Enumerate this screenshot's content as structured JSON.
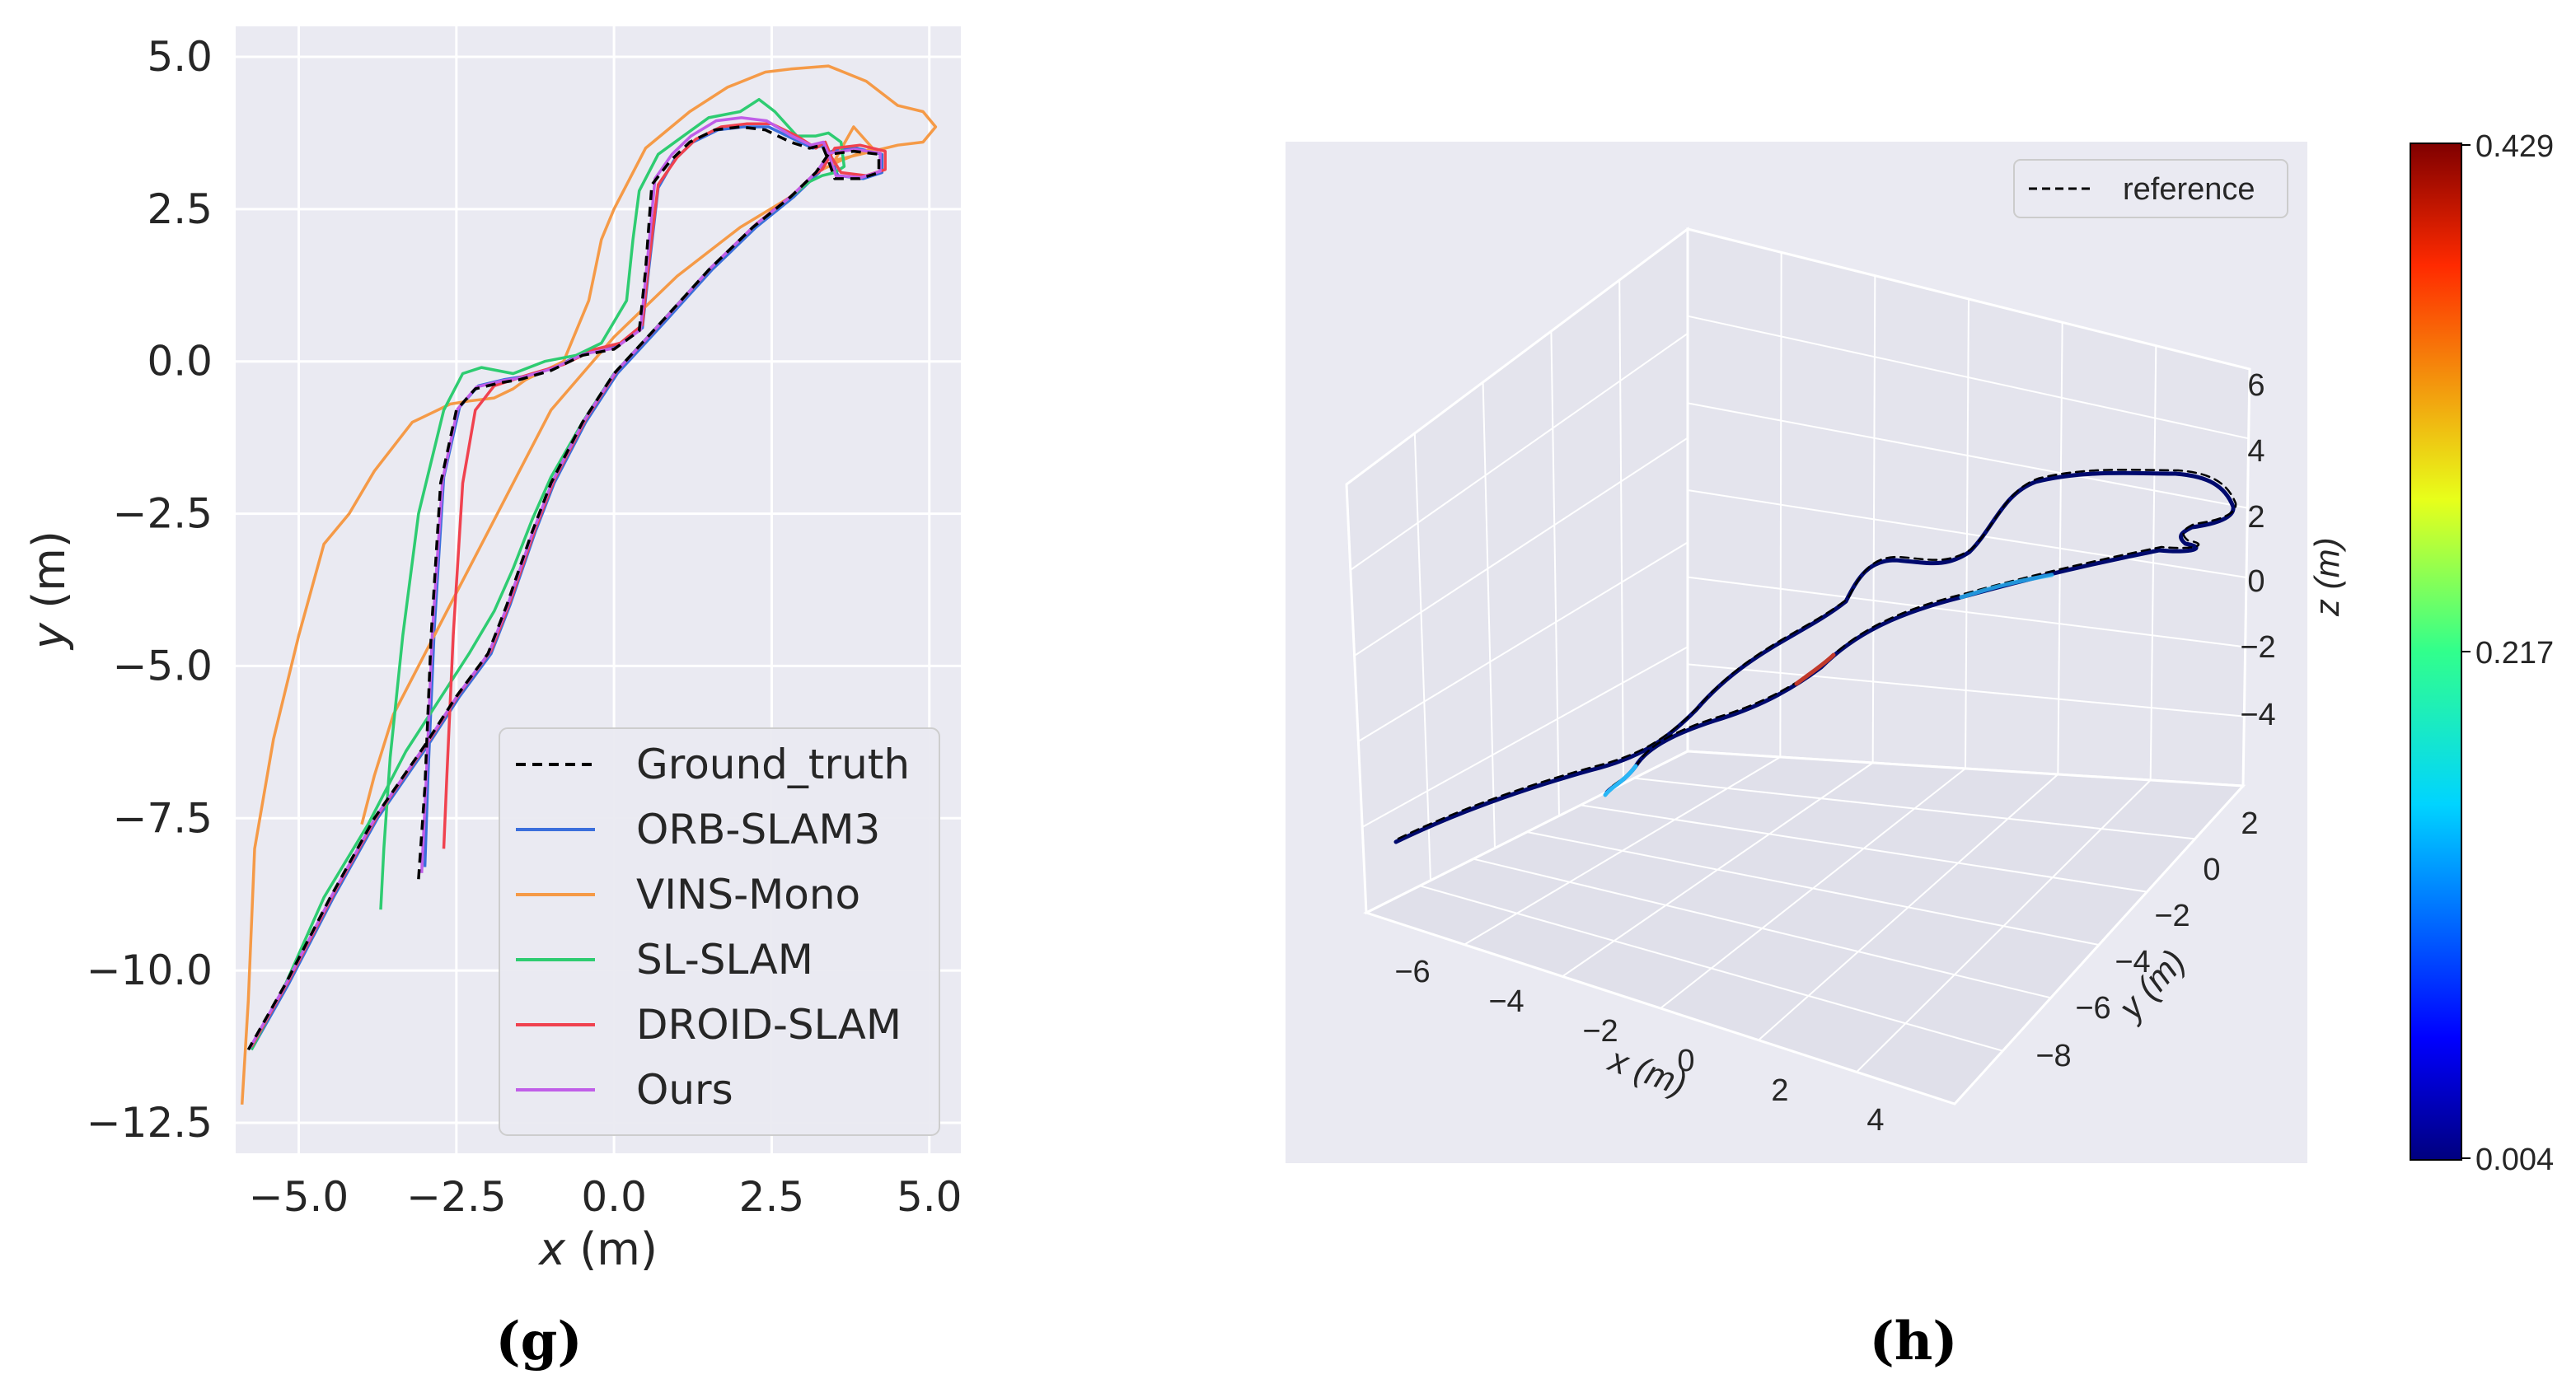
{
  "chart_data": [
    {
      "type": "line",
      "caption": "(g)",
      "xlabel": "x (m)",
      "ylabel": "y (m)",
      "xlim": [
        -6.0,
        5.5
      ],
      "ylim": [
        -13.0,
        5.5
      ],
      "xticks": [
        -5.0,
        -2.5,
        0.0,
        2.5,
        5.0
      ],
      "xtick_labels": [
        "−5.0",
        "−2.5",
        "0.0",
        "2.5",
        "5.0"
      ],
      "yticks": [
        5.0,
        2.5,
        0.0,
        -2.5,
        -5.0,
        -7.5,
        -10.0,
        -12.5
      ],
      "ytick_labels": [
        "5.0",
        "2.5",
        "0.0",
        "−2.5",
        "−5.0",
        "−7.5",
        "−10.0",
        "−12.5"
      ],
      "grid": true,
      "legend_position": "bottom-right",
      "series": [
        {
          "name": "Ground_truth",
          "color": "#000000",
          "dash": true,
          "x": [
            -3.1,
            -3.0,
            -2.9,
            -2.75,
            -2.5,
            -2.2,
            -1.8,
            -1.5,
            -1.0,
            -0.5,
            0.0,
            0.4,
            0.5,
            0.6,
            0.9,
            1.2,
            1.6,
            2.0,
            2.4,
            2.8,
            3.1,
            3.3,
            3.4,
            3.5,
            3.9,
            4.2,
            4.2,
            3.8,
            3.4,
            3.2,
            3.1,
            2.8,
            2.2,
            1.5,
            0.8,
            0.0,
            -0.5,
            -1.0,
            -1.3,
            -1.5,
            -1.7,
            -2.0,
            -2.5,
            -3.0,
            -3.8,
            -4.5,
            -5.2,
            -5.8
          ],
          "y": [
            -8.5,
            -7.0,
            -4.5,
            -2.0,
            -0.8,
            -0.45,
            -0.35,
            -0.3,
            -0.15,
            0.1,
            0.2,
            0.5,
            1.5,
            2.9,
            3.3,
            3.6,
            3.8,
            3.85,
            3.8,
            3.6,
            3.5,
            3.55,
            3.3,
            3.0,
            3.0,
            3.1,
            3.4,
            3.45,
            3.4,
            3.1,
            3.0,
            2.7,
            2.2,
            1.5,
            0.7,
            -0.2,
            -1.0,
            -2.0,
            -2.8,
            -3.4,
            -4.0,
            -4.8,
            -5.5,
            -6.3,
            -7.5,
            -8.8,
            -10.2,
            -11.3
          ]
        },
        {
          "name": "ORB-SLAM3",
          "color": "#3b6fdc",
          "dash": false,
          "x": [
            -3.0,
            -2.95,
            -2.85,
            -2.7,
            -2.45,
            -2.15,
            -1.75,
            -1.45,
            -0.95,
            -0.45,
            0.05,
            0.45,
            0.55,
            0.7,
            0.95,
            1.25,
            1.65,
            2.05,
            2.45,
            2.85,
            3.15,
            3.35,
            3.45,
            3.55,
            3.95,
            4.25,
            4.25,
            3.85,
            3.45,
            3.25,
            3.15,
            2.85,
            2.25,
            1.55,
            0.85,
            0.05,
            -0.45,
            -0.95,
            -1.25,
            -1.45,
            -1.65,
            -1.95,
            -2.45,
            -2.95,
            -3.75,
            -4.45,
            -5.15,
            -5.75
          ],
          "y": [
            -8.3,
            -6.8,
            -4.4,
            -1.9,
            -0.75,
            -0.4,
            -0.3,
            -0.25,
            -0.1,
            0.15,
            0.25,
            0.55,
            1.5,
            2.85,
            3.3,
            3.6,
            3.8,
            3.85,
            3.85,
            3.65,
            3.5,
            3.55,
            3.3,
            3.05,
            3.0,
            3.1,
            3.4,
            3.5,
            3.45,
            3.1,
            3.0,
            2.7,
            2.2,
            1.5,
            0.7,
            -0.2,
            -1.0,
            -2.0,
            -2.8,
            -3.4,
            -4.0,
            -4.8,
            -5.5,
            -6.3,
            -7.5,
            -8.8,
            -10.2,
            -11.3
          ]
        },
        {
          "name": "VINS-Mono",
          "color": "#f59a47",
          "dash": false,
          "x": [
            -5.9,
            -5.8,
            -5.7,
            -5.4,
            -5.0,
            -4.6,
            -4.2,
            -3.8,
            -3.2,
            -2.8,
            -2.6,
            -2.3,
            -1.9,
            -1.6,
            -1.4,
            -1.1,
            -0.8,
            -0.6,
            -0.4,
            -0.3,
            -0.2,
            0.0,
            0.5,
            1.2,
            1.8,
            2.4,
            2.8,
            3.4,
            4.0,
            4.5,
            4.9,
            5.1,
            4.9,
            4.5,
            3.9,
            3.5,
            3.8,
            4.1,
            3.6,
            3.2,
            2.8,
            2.0,
            1.0,
            0.0,
            -1.0,
            -1.5,
            -2.0,
            -2.5,
            -3.0,
            -3.5,
            -3.8,
            -4.0
          ],
          "y": [
            -12.2,
            -10.5,
            -8.0,
            -6.2,
            -4.5,
            -3.0,
            -2.5,
            -1.8,
            -1.0,
            -0.8,
            -0.7,
            -0.65,
            -0.6,
            -0.45,
            -0.3,
            -0.15,
            0.0,
            0.5,
            1.0,
            1.5,
            2.0,
            2.5,
            3.5,
            4.1,
            4.5,
            4.75,
            4.8,
            4.85,
            4.6,
            4.2,
            4.1,
            3.85,
            3.6,
            3.55,
            3.4,
            3.3,
            3.85,
            3.5,
            3.3,
            3.1,
            2.7,
            2.2,
            1.4,
            0.4,
            -0.8,
            -1.8,
            -2.8,
            -3.8,
            -4.8,
            -5.8,
            -6.8,
            -7.6
          ]
        },
        {
          "name": "SL-SLAM",
          "color": "#2ecc71",
          "dash": false,
          "x": [
            -3.7,
            -3.65,
            -3.55,
            -3.35,
            -3.1,
            -2.7,
            -2.4,
            -2.1,
            -1.6,
            -1.1,
            -0.6,
            -0.2,
            0.2,
            0.3,
            0.4,
            0.7,
            1.1,
            1.5,
            2.0,
            2.3,
            2.55,
            2.9,
            3.2,
            3.4,
            3.6,
            3.65,
            3.5,
            3.3,
            3.1,
            2.8,
            2.2,
            1.5,
            0.8,
            0.0,
            -0.5,
            -1.0,
            -1.3,
            -1.6,
            -1.9,
            -2.3,
            -2.8,
            -3.3,
            -3.9,
            -4.6,
            -5.2,
            -5.75
          ],
          "y": [
            -9.0,
            -8.0,
            -6.5,
            -4.5,
            -2.5,
            -0.8,
            -0.2,
            -0.1,
            -0.2,
            0.0,
            0.1,
            0.3,
            1.0,
            2.0,
            2.8,
            3.4,
            3.7,
            4.0,
            4.1,
            4.3,
            4.1,
            3.7,
            3.7,
            3.75,
            3.6,
            3.2,
            3.1,
            3.05,
            2.95,
            2.7,
            2.2,
            1.5,
            0.7,
            -0.2,
            -1.0,
            -1.9,
            -2.6,
            -3.4,
            -4.1,
            -4.8,
            -5.6,
            -6.4,
            -7.6,
            -8.8,
            -10.2,
            -11.3
          ]
        },
        {
          "name": "DROID-SLAM",
          "color": "#f0424f",
          "dash": false,
          "x": [
            -2.7,
            -2.65,
            -2.55,
            -2.4,
            -2.2,
            -1.9,
            -1.6,
            -1.3,
            -0.8,
            -0.3,
            0.1,
            0.45,
            0.55,
            0.7,
            1.0,
            1.3,
            1.7,
            2.1,
            2.5,
            2.9,
            3.2,
            3.35,
            3.45,
            3.6,
            4.0,
            4.3,
            4.3,
            3.9,
            3.5,
            3.3,
            3.15,
            2.85,
            2.25,
            1.55,
            0.85,
            0.05,
            -0.45,
            -0.95,
            -1.25,
            -1.45,
            -1.65,
            -1.95,
            -2.45,
            -2.95,
            -3.75,
            -4.45,
            -5.15,
            -5.75
          ],
          "y": [
            -8.0,
            -6.8,
            -4.5,
            -2.0,
            -0.8,
            -0.4,
            -0.3,
            -0.2,
            -0.05,
            0.2,
            0.3,
            0.6,
            1.6,
            2.9,
            3.35,
            3.65,
            3.85,
            3.9,
            3.9,
            3.7,
            3.5,
            3.6,
            3.35,
            3.1,
            3.05,
            3.15,
            3.45,
            3.55,
            3.5,
            3.15,
            3.05,
            2.75,
            2.25,
            1.55,
            0.75,
            -0.15,
            -0.95,
            -1.95,
            -2.75,
            -3.35,
            -3.95,
            -4.75,
            -5.45,
            -6.25,
            -7.45,
            -8.75,
            -10.15,
            -11.25
          ]
        },
        {
          "name": "Ours",
          "color": "#c05ee8",
          "dash": false,
          "x": [
            -3.05,
            -2.98,
            -2.88,
            -2.72,
            -2.48,
            -2.18,
            -1.78,
            -1.48,
            -0.98,
            -0.48,
            0.02,
            0.42,
            0.52,
            0.65,
            0.92,
            1.22,
            1.62,
            2.02,
            2.42,
            2.82,
            3.12,
            3.32,
            3.42,
            3.52,
            3.92,
            4.22,
            4.22,
            3.82,
            3.42,
            3.22,
            3.12,
            2.82,
            2.22,
            1.52,
            0.82,
            0.02,
            -0.48,
            -0.98,
            -1.28,
            -1.48,
            -1.68,
            -1.98,
            -2.48,
            -2.98,
            -3.78,
            -4.48,
            -5.18,
            -5.78
          ],
          "y": [
            -8.4,
            -6.9,
            -4.45,
            -1.95,
            -0.78,
            -0.42,
            -0.32,
            -0.27,
            -0.12,
            0.12,
            0.22,
            0.52,
            1.55,
            3.0,
            3.4,
            3.7,
            3.95,
            4.0,
            3.95,
            3.7,
            3.55,
            3.6,
            3.35,
            3.05,
            3.02,
            3.12,
            3.42,
            3.48,
            3.42,
            3.12,
            3.02,
            2.72,
            2.22,
            1.52,
            0.72,
            -0.18,
            -0.98,
            -1.98,
            -2.78,
            -3.38,
            -3.98,
            -4.78,
            -5.48,
            -6.28,
            -7.48,
            -8.78,
            -10.18,
            -11.28
          ]
        }
      ]
    },
    {
      "type": "line3d",
      "caption": "(h)",
      "xlabel": "x (m)",
      "ylabel": "y (m)",
      "zlabel": "z (m)",
      "xtick_labels": [
        "−6",
        "−4",
        "−2",
        "0",
        "2",
        "4"
      ],
      "ytick_labels": [
        "2",
        "0",
        "−2",
        "−4",
        "−6",
        "−8"
      ],
      "ztick_labels": [
        "6",
        "4",
        "2",
        "0",
        "−2",
        "−4"
      ],
      "legend": "reference",
      "colorbar": {
        "min": 0.004,
        "mid": 0.217,
        "max": 0.429,
        "labels": [
          "0.429",
          "0.217",
          "0.004"
        ],
        "colormap": "jet"
      },
      "trajectory_color": "#000a6e",
      "error_segment_color": "#c0392b",
      "start_segment_color": "#29b6f6"
    }
  ]
}
